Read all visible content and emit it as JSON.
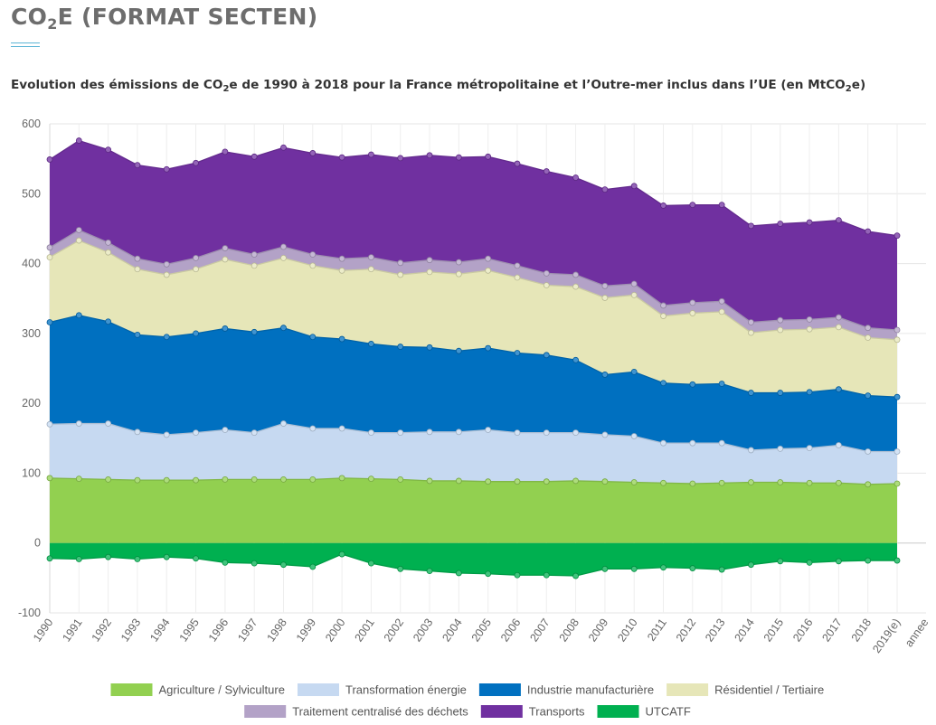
{
  "header": {
    "title_pre": "CO",
    "title_sub": "2",
    "title_post": "E (FORMAT SECTEN)"
  },
  "subtitle": {
    "pre": "Evolution des émissions de CO",
    "sub1": "2",
    "mid": "e de 1990 à 2018 pour la France métropolitaine et l’Outre-mer inclus dans l’UE (en MtCO",
    "sub2": "2",
    "post": "e)"
  },
  "chart_data": {
    "type": "area",
    "stacked": true,
    "categories": [
      "1990",
      "1991",
      "1992",
      "1993",
      "1994",
      "1995",
      "1996",
      "1997",
      "1998",
      "1999",
      "2000",
      "2001",
      "2002",
      "2003",
      "2004",
      "2005",
      "2006",
      "2007",
      "2008",
      "2009",
      "2010",
      "2011",
      "2012",
      "2013",
      "2014",
      "2015",
      "2016",
      "2017",
      "2018",
      "2019(e)"
    ],
    "xlabel": "annee",
    "ylim": [
      -100,
      600
    ],
    "yticks": [
      -100,
      0,
      100,
      200,
      300,
      400,
      500,
      600
    ],
    "grid": true,
    "legend_position": "bottom",
    "series": [
      {
        "name": "Agriculture / Sylviculture",
        "color": "#92d050",
        "values": [
          93,
          92,
          91,
          90,
          90,
          90,
          91,
          91,
          91,
          91,
          93,
          92,
          91,
          89,
          89,
          88,
          88,
          88,
          89,
          88,
          87,
          86,
          85,
          86,
          87,
          87,
          86,
          86,
          84,
          85
        ]
      },
      {
        "name": "Transformation énergie",
        "color": "#c6d9f1",
        "values": [
          77,
          79,
          80,
          69,
          65,
          68,
          71,
          67,
          80,
          73,
          71,
          66,
          67,
          70,
          70,
          74,
          70,
          70,
          69,
          67,
          66,
          57,
          58,
          57,
          46,
          48,
          50,
          54,
          47,
          46
        ]
      },
      {
        "name": "Industrie manufacturière",
        "color": "#0070c0",
        "values": [
          146,
          155,
          146,
          139,
          140,
          142,
          145,
          144,
          137,
          131,
          128,
          127,
          123,
          121,
          116,
          117,
          114,
          111,
          104,
          86,
          92,
          86,
          84,
          85,
          82,
          80,
          80,
          80,
          80,
          78
        ]
      },
      {
        "name": "Résidentiel / Tertiaire",
        "color": "#e6e6b8",
        "values": [
          93,
          107,
          99,
          94,
          89,
          92,
          99,
          95,
          100,
          102,
          98,
          107,
          103,
          108,
          110,
          111,
          108,
          100,
          105,
          110,
          110,
          96,
          102,
          103,
          86,
          90,
          90,
          89,
          83,
          82
        ]
      },
      {
        "name": "Traitement centralisé des déchets",
        "color": "#b3a2c7",
        "values": [
          14,
          15,
          14,
          15,
          15,
          16,
          16,
          16,
          16,
          16,
          17,
          17,
          17,
          17,
          17,
          17,
          17,
          17,
          17,
          17,
          16,
          15,
          15,
          15,
          15,
          14,
          14,
          14,
          14,
          14
        ]
      },
      {
        "name": "Transports",
        "color": "#7030a0",
        "values": [
          126,
          128,
          133,
          134,
          136,
          136,
          138,
          140,
          142,
          145,
          145,
          147,
          150,
          150,
          150,
          146,
          146,
          146,
          139,
          138,
          140,
          143,
          140,
          138,
          138,
          138,
          139,
          139,
          138,
          135
        ]
      },
      {
        "name": "UTCATF",
        "color": "#00b050",
        "values": [
          -22,
          -23,
          -20,
          -23,
          -20,
          -22,
          -28,
          -29,
          -31,
          -34,
          -16,
          -29,
          -37,
          -40,
          -43,
          -44,
          -46,
          -46,
          -47,
          -37,
          -37,
          -35,
          -36,
          -38,
          -31,
          -26,
          -28,
          -26,
          -25,
          -25
        ]
      }
    ]
  }
}
